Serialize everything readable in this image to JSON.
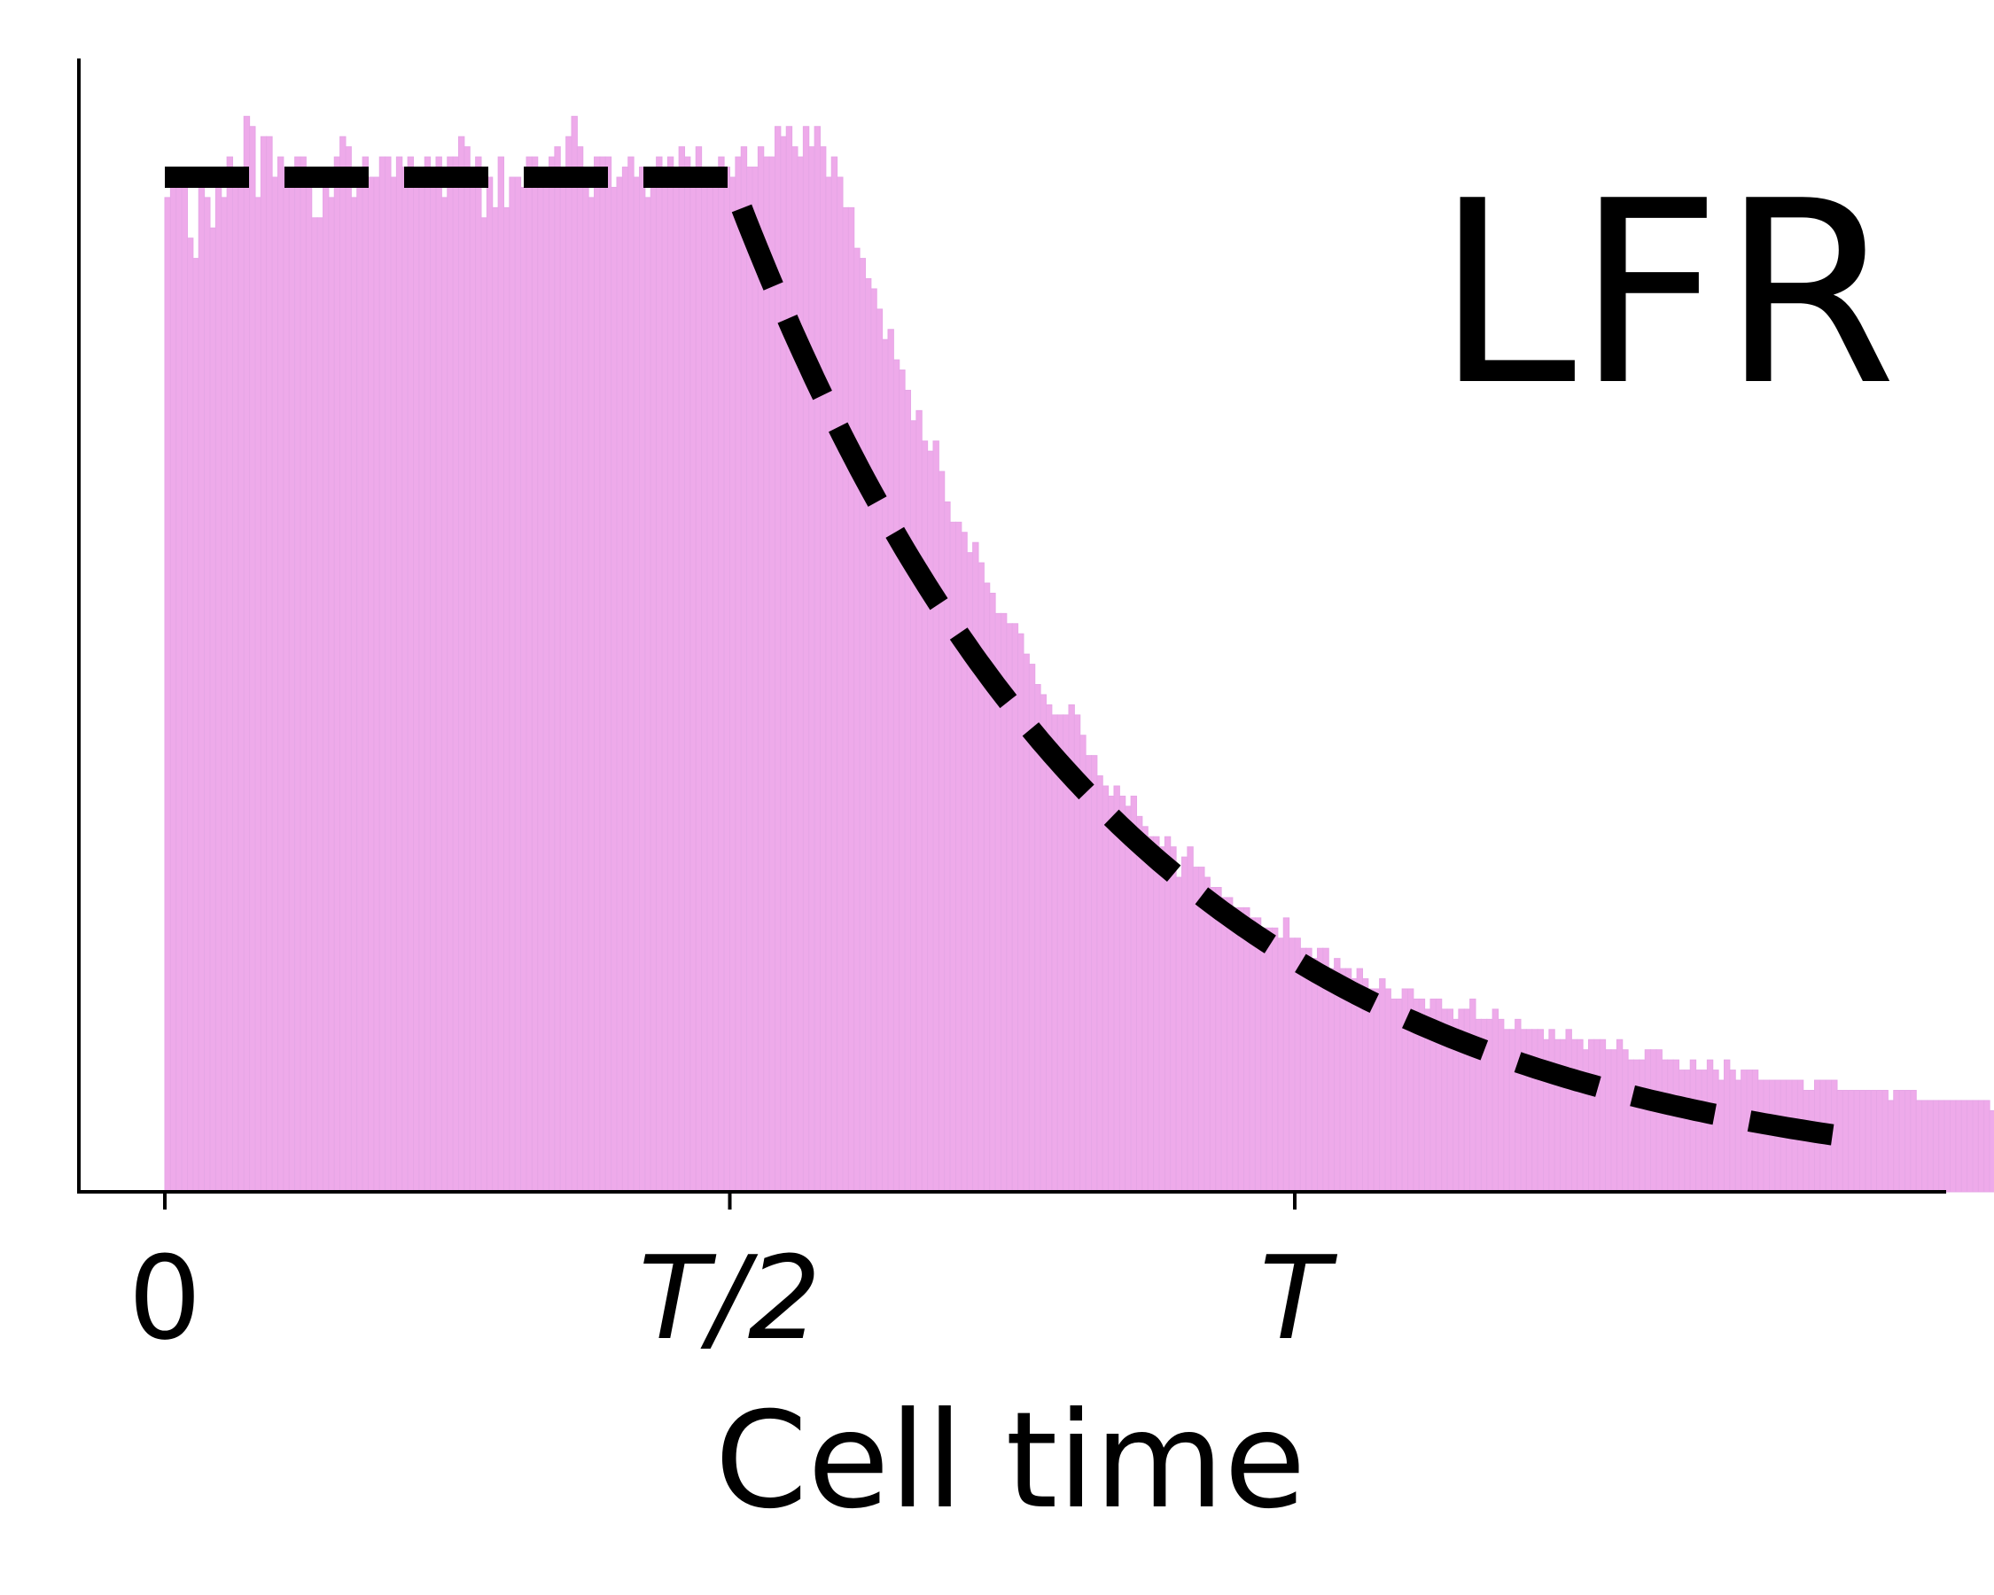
{
  "chart_data": {
    "type": "bar",
    "title": "",
    "xlabel": "Cell time",
    "ylabel": "",
    "annotation": "LFR",
    "xlim": [
      -0.075,
      1.65
    ],
    "ylim": [
      0,
      1.06
    ],
    "x_ticks": [
      {
        "value": 0,
        "label": "0",
        "italic": false
      },
      {
        "value": 0.5,
        "label": "T/2",
        "italic": true
      },
      {
        "value": 1,
        "label": "T",
        "italic": true
      }
    ],
    "y_ticks": [],
    "grid": false,
    "legend": "none",
    "colors": {
      "bar_fill": "#eeaaea",
      "bar_edge": "#e6a6e6",
      "curve": "#000000",
      "axis": "#000000"
    },
    "histogram": {
      "bin_start": 0,
      "bin_width": 0.005,
      "values": [
        0.98,
        0.99,
        1.0,
        1.0,
        0.94,
        0.92,
        0.99,
        0.98,
        0.95,
        0.99,
        0.98,
        1.02,
        1.01,
        1.01,
        1.06,
        1.05,
        0.98,
        1.04,
        1.04,
        1.0,
        1.02,
        1.01,
        1.0,
        1.02,
        1.02,
        1.0,
        0.96,
        0.96,
        1.0,
        0.98,
        1.02,
        1.04,
        1.03,
        0.98,
        0.99,
        1.02,
        1.0,
        1.0,
        1.02,
        1.02,
        1.0,
        1.02,
        1.01,
        1.02,
        0.99,
        1.0,
        1.02,
        1.0,
        1.02,
        0.98,
        1.02,
        1.02,
        1.04,
        1.03,
        1.01,
        1.02,
        0.96,
        1.0,
        0.97,
        1.02,
        0.97,
        1.0,
        1.0,
        0.99,
        1.02,
        1.02,
        1.0,
        1.0,
        1.02,
        1.03,
        1.0,
        1.04,
        1.06,
        1.03,
        1.0,
        0.98,
        1.02,
        1.02,
        1.02,
        0.99,
        1.0,
        1.01,
        1.02,
        1.0,
        1.01,
        0.98,
        1.0,
        1.02,
        1.0,
        1.02,
        1.01,
        1.03,
        1.02,
        1.01,
        1.03,
        1.0,
        1.0,
        0.99,
        1.02,
        1.01,
        1.0,
        1.02,
        1.03,
        1.01,
        1.01,
        1.03,
        1.02,
        1.02,
        1.05,
        1.04,
        1.05,
        1.03,
        1.02,
        1.05,
        1.03,
        1.05,
        1.03,
        1.0,
        1.02,
        1.0,
        0.97,
        0.97,
        0.93,
        0.92,
        0.9,
        0.89,
        0.87,
        0.84,
        0.85,
        0.82,
        0.81,
        0.79,
        0.76,
        0.77,
        0.74,
        0.73,
        0.74,
        0.71,
        0.68,
        0.66,
        0.66,
        0.65,
        0.63,
        0.64,
        0.62,
        0.6,
        0.59,
        0.57,
        0.57,
        0.56,
        0.56,
        0.55,
        0.53,
        0.52,
        0.5,
        0.49,
        0.48,
        0.47,
        0.47,
        0.47,
        0.48,
        0.47,
        0.45,
        0.43,
        0.43,
        0.41,
        0.4,
        0.39,
        0.4,
        0.39,
        0.38,
        0.39,
        0.37,
        0.36,
        0.35,
        0.35,
        0.34,
        0.35,
        0.34,
        0.31,
        0.33,
        0.34,
        0.32,
        0.32,
        0.31,
        0.3,
        0.3,
        0.29,
        0.29,
        0.28,
        0.28,
        0.28,
        0.27,
        0.27,
        0.26,
        0.26,
        0.26,
        0.25,
        0.27,
        0.25,
        0.25,
        0.24,
        0.24,
        0.23,
        0.24,
        0.24,
        0.22,
        0.23,
        0.22,
        0.22,
        0.21,
        0.22,
        0.21,
        0.2,
        0.2,
        0.21,
        0.2,
        0.19,
        0.19,
        0.2,
        0.2,
        0.19,
        0.19,
        0.18,
        0.19,
        0.19,
        0.18,
        0.18,
        0.17,
        0.18,
        0.18,
        0.19,
        0.17,
        0.17,
        0.17,
        0.18,
        0.17,
        0.16,
        0.16,
        0.17,
        0.16,
        0.16,
        0.16,
        0.16,
        0.15,
        0.16,
        0.15,
        0.15,
        0.16,
        0.15,
        0.15,
        0.14,
        0.15,
        0.15,
        0.15,
        0.14,
        0.14,
        0.15,
        0.14,
        0.13,
        0.13,
        0.13,
        0.14,
        0.14,
        0.14,
        0.13,
        0.13,
        0.13,
        0.12,
        0.12,
        0.13,
        0.12,
        0.12,
        0.13,
        0.12,
        0.11,
        0.13,
        0.12,
        0.11,
        0.12,
        0.12,
        0.12,
        0.11,
        0.11,
        0.11,
        0.11,
        0.11,
        0.11,
        0.11,
        0.11,
        0.1,
        0.1,
        0.11,
        0.11,
        0.11,
        0.11,
        0.1,
        0.1,
        0.1,
        0.1,
        0.1,
        0.1,
        0.1,
        0.1,
        0.1,
        0.09,
        0.1,
        0.1,
        0.1,
        0.1,
        0.09,
        0.09,
        0.09,
        0.09,
        0.09,
        0.09,
        0.09,
        0.09,
        0.09,
        0.09,
        0.09,
        0.09,
        0.09,
        0.08,
        0.09,
        0.08,
        0.08,
        0.08,
        0.08,
        0.08,
        0.08,
        0.08,
        0.08,
        0.08,
        0.08,
        0.08,
        0.08,
        0.08,
        0.07,
        0.08,
        0.08,
        0.08,
        0.08,
        0.07,
        0.07,
        0.07,
        0.07,
        0.07,
        0.07,
        0.07,
        0.07,
        0.07,
        0.07,
        0.07,
        0.07,
        0.07,
        0.06,
        0.07,
        0.06,
        0.07,
        0.07,
        0.07,
        0.06,
        0.06,
        0.06,
        0.06,
        0.06,
        0.06,
        0.06,
        0.06,
        0.06,
        0.06,
        0.06,
        0.06
      ]
    },
    "density_curve": {
      "style": "dashed",
      "plateau_level": 1.0,
      "plateau_end": 0.5,
      "end": 1.5,
      "decay_rate": 2.95
    }
  }
}
